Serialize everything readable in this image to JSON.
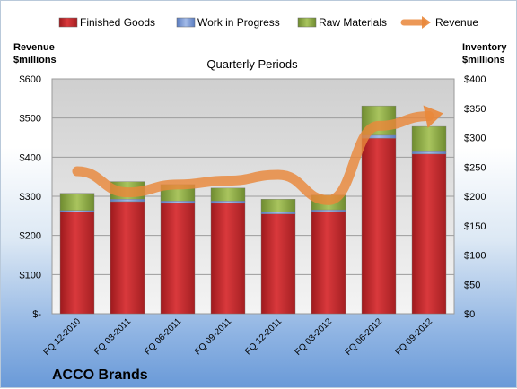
{
  "chart_data": {
    "type": "bar",
    "stacked": true,
    "title": "Quarterly Periods",
    "brand": "ACCO Brands",
    "y_left_label": [
      "Revenue",
      "$millions"
    ],
    "y_right_label": [
      "Inventory",
      "$millions"
    ],
    "categories": [
      "FQ 12-2010",
      "FQ 03-2011",
      "FQ 06-2011",
      "FQ 09-2011",
      "FQ 12-2011",
      "FQ 03-2012",
      "FQ 06-2012",
      "FQ 09-2012"
    ],
    "series": [
      {
        "name": "Finished Goods",
        "axis": "right",
        "color": "#c0282b",
        "values": [
          173,
          191,
          188,
          188,
          170,
          174,
          299,
          272
        ]
      },
      {
        "name": "Work in Progress",
        "axis": "right",
        "color": "#6d8ecf",
        "values": [
          3,
          4,
          4,
          4,
          3,
          3,
          5,
          4
        ]
      },
      {
        "name": "Raw Materials",
        "axis": "right",
        "color": "#8dab45",
        "values": [
          29,
          30,
          28,
          22,
          22,
          25,
          50,
          43
        ]
      },
      {
        "name": "Revenue",
        "type": "line",
        "axis": "left",
        "color": "#e9873a",
        "values": [
          364,
          310,
          330,
          340,
          355,
          290,
          480,
          505
        ]
      }
    ],
    "y_left": {
      "min": 0,
      "max": 600,
      "step": 100,
      "ticks": [
        "$-",
        "$100",
        "$200",
        "$300",
        "$400",
        "$500",
        "$600"
      ]
    },
    "y_right": {
      "min": 0,
      "max": 400,
      "step": 50,
      "ticks": [
        "$0",
        "$50",
        "$100",
        "$150",
        "$200",
        "$250",
        "$300",
        "$350",
        "$400"
      ]
    },
    "legend_position": "top",
    "grid": true
  }
}
